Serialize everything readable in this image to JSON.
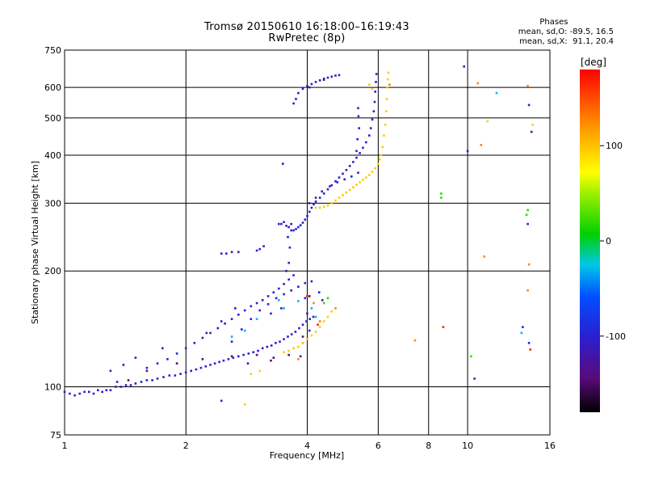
{
  "header": {
    "title_line1": "Tromsø 20150610 16:18:00–16:19:43",
    "title_line2": "RwPretec (8p)"
  },
  "phase_info": {
    "title": "Phases",
    "line1": "mean, sd,O: -89.5, 16.5",
    "line2": "mean, sd,X:  91.1, 20.4"
  },
  "chart_data": {
    "type": "scatter",
    "xlabel": "Frequency [MHz]",
    "ylabel": "Stationary phase Virtual Height [km]",
    "x_scale": "log",
    "y_scale": "log",
    "xlim": [
      1,
      16
    ],
    "ylim": [
      75,
      750
    ],
    "x_ticks": [
      1,
      2,
      4,
      6,
      8,
      10,
      16
    ],
    "y_ticks": [
      75,
      100,
      200,
      300,
      400,
      500,
      600,
      750
    ],
    "grid": true,
    "colorbar": {
      "label": "[deg]",
      "range": [
        -180,
        180
      ],
      "ticks": [
        100,
        0,
        -100
      ],
      "colormap": "rainbow: black(-180) → purple → blue → cyan → green(0) → yellow → orange → red(180)"
    },
    "series": [
      {
        "color_phase": -100,
        "points": [
          [
            1.0,
            97
          ],
          [
            1.03,
            96
          ],
          [
            1.06,
            95
          ],
          [
            1.09,
            96
          ],
          [
            1.12,
            97
          ],
          [
            1.15,
            97
          ],
          [
            1.18,
            96
          ],
          [
            1.21,
            98
          ],
          [
            1.24,
            97
          ],
          [
            1.27,
            98
          ],
          [
            1.3,
            98
          ],
          [
            1.34,
            100
          ],
          [
            1.38,
            100
          ],
          [
            1.42,
            101
          ],
          [
            1.46,
            101
          ],
          [
            1.5,
            102
          ],
          [
            1.55,
            103
          ],
          [
            1.6,
            104
          ],
          [
            1.65,
            104
          ],
          [
            1.7,
            105
          ],
          [
            1.76,
            106
          ],
          [
            1.82,
            107
          ],
          [
            1.88,
            107
          ],
          [
            1.94,
            108
          ],
          [
            2.0,
            109
          ],
          [
            2.06,
            110
          ],
          [
            2.12,
            111
          ],
          [
            2.18,
            112
          ],
          [
            2.24,
            113
          ],
          [
            2.3,
            114
          ],
          [
            2.36,
            115
          ],
          [
            2.42,
            116
          ],
          [
            2.48,
            117
          ],
          [
            2.55,
            118
          ],
          [
            2.62,
            119
          ],
          [
            2.7,
            120
          ],
          [
            2.78,
            121
          ],
          [
            2.86,
            122
          ],
          [
            2.94,
            123
          ],
          [
            3.02,
            124
          ],
          [
            3.1,
            126
          ],
          [
            3.18,
            127
          ],
          [
            3.26,
            128
          ],
          [
            3.34,
            130
          ],
          [
            3.42,
            131
          ],
          [
            3.5,
            133
          ],
          [
            3.58,
            135
          ],
          [
            3.66,
            137
          ],
          [
            3.74,
            139
          ],
          [
            3.82,
            142
          ],
          [
            3.9,
            145
          ],
          [
            3.98,
            148
          ],
          [
            4.06,
            150
          ],
          [
            4.14,
            152
          ],
          [
            1.6,
            112
          ],
          [
            1.7,
            115
          ],
          [
            1.8,
            118
          ],
          [
            1.9,
            122
          ],
          [
            2.0,
            126
          ],
          [
            2.1,
            130
          ],
          [
            2.2,
            134
          ],
          [
            2.3,
            138
          ],
          [
            2.4,
            142
          ],
          [
            2.5,
            146
          ],
          [
            2.6,
            150
          ],
          [
            2.7,
            154
          ],
          [
            2.8,
            158
          ],
          [
            2.9,
            162
          ],
          [
            3.0,
            165
          ],
          [
            3.1,
            168
          ],
          [
            3.2,
            172
          ],
          [
            3.3,
            176
          ],
          [
            3.4,
            180
          ],
          [
            3.5,
            185
          ],
          [
            3.6,
            190
          ],
          [
            3.7,
            195
          ],
          [
            2.6,
            131
          ],
          [
            2.75,
            141
          ],
          [
            2.9,
            150
          ],
          [
            3.05,
            158
          ],
          [
            3.2,
            164
          ],
          [
            3.35,
            170
          ],
          [
            3.5,
            174
          ],
          [
            3.65,
            178
          ],
          [
            3.8,
            182
          ],
          [
            3.95,
            186
          ],
          [
            4.1,
            188
          ],
          [
            1.3,
            110
          ],
          [
            1.4,
            114
          ],
          [
            1.5,
            119
          ],
          [
            1.75,
            126
          ],
          [
            2.25,
            138
          ],
          [
            2.45,
            148
          ],
          [
            2.65,
            160
          ],
          [
            3.25,
            155
          ],
          [
            3.45,
            160
          ],
          [
            3.55,
            200
          ],
          [
            3.6,
            210
          ],
          [
            3.62,
            230
          ],
          [
            3.58,
            245
          ],
          [
            2.45,
            222
          ],
          [
            2.52,
            222
          ],
          [
            2.6,
            224
          ],
          [
            2.7,
            224
          ],
          [
            3.0,
            226
          ],
          [
            3.05,
            228
          ],
          [
            3.12,
            232
          ],
          [
            3.48,
            380
          ],
          [
            4.28,
            176
          ],
          [
            4.36,
            168
          ],
          [
            3.4,
            265
          ],
          [
            3.45,
            265
          ],
          [
            3.5,
            268
          ],
          [
            3.55,
            262
          ],
          [
            3.6,
            260
          ],
          [
            3.65,
            255
          ],
          [
            3.7,
            255
          ],
          [
            3.75,
            257
          ],
          [
            3.8,
            260
          ],
          [
            3.85,
            263
          ],
          [
            3.9,
            267
          ],
          [
            3.95,
            272
          ],
          [
            4.0,
            278
          ],
          [
            4.05,
            285
          ],
          [
            4.1,
            292
          ],
          [
            4.15,
            298
          ],
          [
            4.2,
            303
          ],
          [
            4.3,
            310
          ],
          [
            4.4,
            318
          ],
          [
            4.5,
            326
          ],
          [
            4.6,
            334
          ],
          [
            4.7,
            342
          ],
          [
            4.8,
            350
          ],
          [
            4.9,
            358
          ],
          [
            5.0,
            366
          ],
          [
            5.1,
            375
          ],
          [
            5.2,
            384
          ],
          [
            5.3,
            394
          ],
          [
            5.4,
            405
          ],
          [
            5.5,
            418
          ],
          [
            5.6,
            432
          ],
          [
            5.7,
            450
          ],
          [
            5.75,
            470
          ],
          [
            5.8,
            495
          ],
          [
            5.85,
            520
          ],
          [
            5.88,
            550
          ],
          [
            5.9,
            585
          ],
          [
            5.92,
            620
          ],
          [
            5.94,
            650
          ],
          [
            4.05,
            300
          ],
          [
            4.2,
            310
          ],
          [
            4.35,
            322
          ],
          [
            4.55,
            332
          ],
          [
            4.75,
            340
          ],
          [
            4.95,
            346
          ],
          [
            5.15,
            352
          ],
          [
            5.35,
            360
          ],
          [
            3.7,
            545
          ],
          [
            3.75,
            560
          ],
          [
            3.8,
            580
          ],
          [
            3.9,
            595
          ],
          [
            4.0,
            605
          ],
          [
            4.1,
            612
          ],
          [
            4.2,
            620
          ],
          [
            4.3,
            626
          ],
          [
            4.4,
            632
          ],
          [
            4.5,
            636
          ],
          [
            4.6,
            640
          ],
          [
            4.7,
            644
          ],
          [
            4.8,
            646
          ],
          [
            5.35,
            530
          ],
          [
            5.36,
            505
          ],
          [
            5.38,
            470
          ],
          [
            5.33,
            440
          ],
          [
            5.3,
            410
          ],
          [
            3.95,
            170
          ],
          [
            4.0,
            155
          ],
          [
            4.05,
            140
          ],
          [
            3.9,
            130
          ],
          [
            3.85,
            120
          ],
          [
            9.8,
            680
          ],
          [
            10.0,
            410
          ],
          [
            14.2,
            540
          ],
          [
            13.7,
            143
          ],
          [
            14.2,
            130
          ],
          [
            14.1,
            265
          ],
          [
            10.4,
            105
          ],
          [
            2.45,
            92
          ],
          [
            1.35,
            103
          ]
        ]
      },
      {
        "color_phase": -140,
        "points": [
          [
            1.6,
            110
          ],
          [
            1.9,
            115
          ],
          [
            2.2,
            118
          ],
          [
            2.6,
            120
          ],
          [
            3.0,
            121
          ],
          [
            3.3,
            119
          ],
          [
            3.6,
            121
          ],
          [
            3.9,
            135
          ],
          [
            4.05,
            172
          ],
          [
            3.65,
            265
          ],
          [
            4.05,
            600
          ],
          [
            4.4,
            628
          ],
          [
            14.4,
            460
          ],
          [
            2.85,
            115
          ],
          [
            3.25,
            117
          ],
          [
            1.44,
            104
          ]
        ]
      },
      {
        "color_phase": -30,
        "points": [
          [
            2.6,
            135
          ],
          [
            3.0,
            150
          ],
          [
            3.5,
            160
          ],
          [
            3.8,
            167
          ],
          [
            4.1,
            160
          ],
          [
            4.2,
            152
          ],
          [
            3.4,
            168
          ],
          [
            11.8,
            580
          ],
          [
            13.6,
            138
          ],
          [
            2.8,
            140
          ]
        ]
      },
      {
        "color_phase": 20,
        "points": [
          [
            4.4,
            165
          ],
          [
            4.5,
            170
          ],
          [
            8.6,
            318
          ],
          [
            8.6,
            310
          ],
          [
            14.1,
            288
          ],
          [
            14.0,
            280
          ],
          [
            10.2,
            120
          ]
        ]
      },
      {
        "color_phase": 95,
        "points": [
          [
            3.5,
            123
          ],
          [
            3.6,
            124
          ],
          [
            3.7,
            126
          ],
          [
            3.8,
            127
          ],
          [
            3.9,
            130
          ],
          [
            4.0,
            133
          ],
          [
            4.1,
            136
          ],
          [
            4.2,
            139
          ],
          [
            4.3,
            143
          ],
          [
            4.4,
            148
          ],
          [
            4.5,
            152
          ],
          [
            4.6,
            157
          ],
          [
            4.2,
            292
          ],
          [
            4.3,
            292
          ],
          [
            4.4,
            294
          ],
          [
            4.5,
            296
          ],
          [
            4.6,
            300
          ],
          [
            4.7,
            305
          ],
          [
            4.8,
            310
          ],
          [
            4.9,
            315
          ],
          [
            5.0,
            320
          ],
          [
            5.1,
            325
          ],
          [
            5.2,
            330
          ],
          [
            5.3,
            335
          ],
          [
            5.4,
            340
          ],
          [
            5.5,
            345
          ],
          [
            5.6,
            350
          ],
          [
            5.7,
            355
          ],
          [
            5.8,
            362
          ],
          [
            5.9,
            370
          ],
          [
            6.0,
            380
          ],
          [
            6.05,
            390
          ],
          [
            6.1,
            400
          ],
          [
            6.15,
            420
          ],
          [
            6.2,
            450
          ],
          [
            6.25,
            480
          ],
          [
            6.28,
            520
          ],
          [
            6.3,
            560
          ],
          [
            6.32,
            600
          ],
          [
            6.34,
            630
          ],
          [
            6.36,
            655
          ],
          [
            5.8,
            595
          ],
          [
            5.7,
            610
          ],
          [
            2.9,
            108
          ],
          [
            3.05,
            110
          ],
          [
            2.8,
            90
          ],
          [
            11.2,
            490
          ],
          [
            14.5,
            480
          ]
        ]
      },
      {
        "color_phase": 125,
        "points": [
          [
            4.15,
            165
          ],
          [
            4.7,
            160
          ],
          [
            4.3,
            148
          ],
          [
            3.8,
            118
          ],
          [
            6.4,
            610
          ],
          [
            10.6,
            615
          ],
          [
            14.1,
            605
          ],
          [
            14.1,
            178
          ],
          [
            10.8,
            425
          ],
          [
            11.0,
            218
          ],
          [
            14.2,
            208
          ],
          [
            7.4,
            132
          ]
        ]
      },
      {
        "color_phase": 165,
        "points": [
          [
            4.25,
            145
          ],
          [
            4.0,
            172
          ],
          [
            14.3,
            125
          ],
          [
            8.7,
            143
          ]
        ]
      }
    ]
  }
}
